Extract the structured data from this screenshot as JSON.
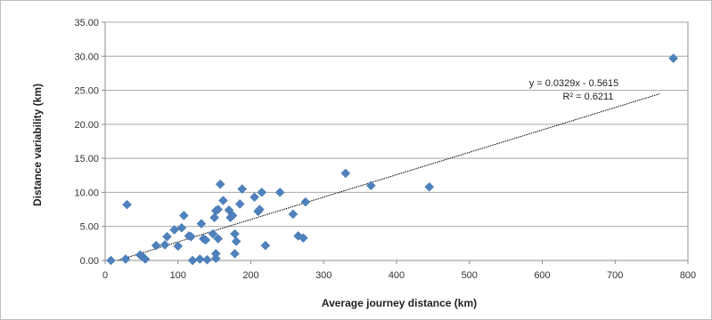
{
  "chart_data": {
    "type": "scatter",
    "xlabel": "Average journey distance (km)",
    "ylabel": "Distance variability (km)",
    "xlim": [
      0,
      800
    ],
    "ylim": [
      0,
      35
    ],
    "xticks": [
      "0",
      "100",
      "200",
      "300",
      "400",
      "500",
      "600",
      "700",
      "800"
    ],
    "yticks": [
      "0.00",
      "5.00",
      "10.00",
      "15.00",
      "20.00",
      "25.00",
      "30.00",
      "35.00"
    ],
    "grid": "horizontal",
    "marker_color": "#4f81bd",
    "trendline": {
      "slope": 0.0329,
      "intercept": -0.5615,
      "equation": "y = 0.0329x - 0.5615",
      "r2": "R² = 0.6211"
    },
    "series": [
      {
        "points": [
          [
            8,
            0.0
          ],
          [
            28,
            0.2
          ],
          [
            30,
            8.2
          ],
          [
            48,
            0.8
          ],
          [
            52,
            0.5
          ],
          [
            55,
            0.2
          ],
          [
            70,
            2.2
          ],
          [
            82,
            2.3
          ],
          [
            85,
            3.5
          ],
          [
            95,
            4.5
          ],
          [
            100,
            2.1
          ],
          [
            105,
            4.8
          ],
          [
            108,
            6.6
          ],
          [
            115,
            3.6
          ],
          [
            118,
            3.5
          ],
          [
            120,
            0.0
          ],
          [
            130,
            0.2
          ],
          [
            132,
            5.4
          ],
          [
            135,
            3.2
          ],
          [
            138,
            3.0
          ],
          [
            140,
            0.1
          ],
          [
            148,
            3.9
          ],
          [
            150,
            6.3
          ],
          [
            152,
            1.0
          ],
          [
            152,
            0.3
          ],
          [
            152,
            7.3
          ],
          [
            155,
            7.5
          ],
          [
            155,
            3.2
          ],
          [
            158,
            11.2
          ],
          [
            162,
            8.8
          ],
          [
            170,
            7.4
          ],
          [
            172,
            6.3
          ],
          [
            175,
            6.6
          ],
          [
            178,
            3.9
          ],
          [
            180,
            2.8
          ],
          [
            178,
            1.0
          ],
          [
            185,
            8.3
          ],
          [
            188,
            10.5
          ],
          [
            205,
            9.3
          ],
          [
            210,
            7.2
          ],
          [
            212,
            7.5
          ],
          [
            215,
            10.0
          ],
          [
            220,
            2.2
          ],
          [
            240,
            10.0
          ],
          [
            258,
            6.8
          ],
          [
            265,
            3.6
          ],
          [
            272,
            3.3
          ],
          [
            275,
            8.6
          ],
          [
            330,
            12.8
          ],
          [
            365,
            11.0
          ],
          [
            445,
            10.8
          ],
          [
            780,
            29.7
          ]
        ]
      }
    ]
  }
}
